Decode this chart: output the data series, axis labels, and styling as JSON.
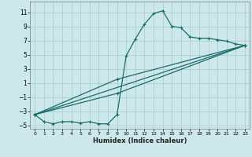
{
  "title": "",
  "xlabel": "Humidex (Indice chaleur)",
  "ylabel": "",
  "xlim": [
    -0.5,
    23.5
  ],
  "ylim": [
    -5.5,
    12.5
  ],
  "xticks": [
    0,
    1,
    2,
    3,
    4,
    5,
    6,
    7,
    8,
    9,
    10,
    11,
    12,
    13,
    14,
    15,
    16,
    17,
    18,
    19,
    20,
    21,
    22,
    23
  ],
  "yticks": [
    -5,
    -3,
    -1,
    1,
    3,
    5,
    7,
    9,
    11
  ],
  "bg_color": "#cde8ea",
  "grid_color": "#aacfd2",
  "line_color": "#1a6b6b",
  "line1_x": [
    0,
    1,
    2,
    3,
    4,
    5,
    6,
    7,
    8,
    9,
    10,
    11,
    12,
    13,
    14,
    15,
    16,
    17,
    18,
    19,
    20,
    21,
    22,
    23
  ],
  "line1_y": [
    -3.5,
    -4.5,
    -4.8,
    -4.5,
    -4.5,
    -4.7,
    -4.5,
    -4.8,
    -4.8,
    -3.5,
    4.8,
    7.2,
    9.3,
    10.8,
    11.2,
    9.0,
    8.8,
    7.5,
    7.3,
    7.3,
    7.1,
    6.9,
    6.5,
    6.3
  ],
  "line2_x": [
    0,
    23
  ],
  "line2_y": [
    -3.5,
    6.3
  ],
  "line3_x": [
    0,
    9,
    23
  ],
  "line3_y": [
    -3.5,
    1.5,
    6.3
  ],
  "line4_x": [
    0,
    9,
    23
  ],
  "line4_y": [
    -3.5,
    -0.5,
    6.3
  ]
}
